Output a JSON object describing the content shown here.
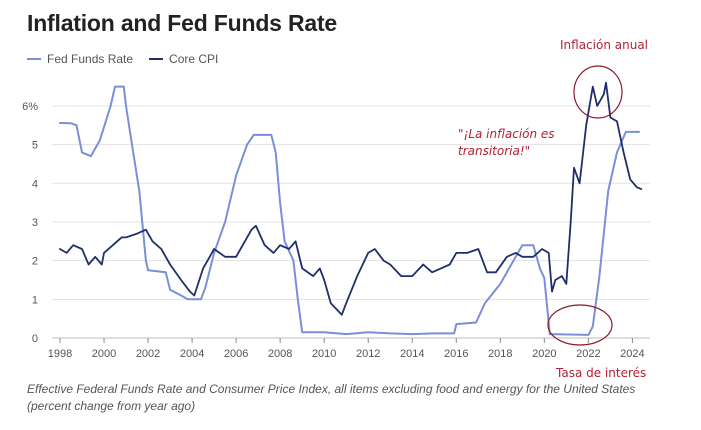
{
  "title": "Inflation and Fed Funds Rate",
  "caption": "Effective Federal Funds Rate and Consumer Price Index, all items excluding food and energy for the United States (percent change from year ago)",
  "annotations": {
    "inflation_label": "Inflación anual",
    "rate_label": "Tasa de interés",
    "quote": "\"¡La inflación es transitoria!\""
  },
  "colors": {
    "fed_funds": "#7b8fd8",
    "core_cpi": "#1f2f6b",
    "annotation": "#b22234",
    "grid": "#e3e3e3"
  },
  "chart_data": {
    "type": "line",
    "title": "Inflation and Fed Funds Rate",
    "xlabel": "",
    "ylabel": "",
    "xlim": [
      1998,
      2024.8
    ],
    "ylim": [
      0,
      6.8
    ],
    "x_ticks": [
      "1998",
      "2000",
      "2002",
      "2004",
      "2006",
      "2008",
      "2010",
      "2012",
      "2014",
      "2016",
      "2018",
      "2020",
      "2022",
      "2024"
    ],
    "y_ticks": [
      "0",
      "1",
      "2",
      "3",
      "4",
      "5",
      "6%"
    ],
    "legend_position": "top-left",
    "grid": "horizontal",
    "series": [
      {
        "name": "Fed Funds Rate",
        "color": "#7b8fd8",
        "points": [
          [
            1998.0,
            5.56
          ],
          [
            1998.5,
            5.55
          ],
          [
            1998.75,
            5.5
          ],
          [
            1999.0,
            4.8
          ],
          [
            1999.4,
            4.7
          ],
          [
            1999.8,
            5.1
          ],
          [
            2000.0,
            5.45
          ],
          [
            2000.3,
            6.0
          ],
          [
            2000.5,
            6.5
          ],
          [
            2000.9,
            6.5
          ],
          [
            2001.0,
            6.0
          ],
          [
            2001.3,
            4.9
          ],
          [
            2001.6,
            3.8
          ],
          [
            2001.9,
            2.0
          ],
          [
            2002.0,
            1.75
          ],
          [
            2002.8,
            1.7
          ],
          [
            2003.0,
            1.25
          ],
          [
            2003.5,
            1.1
          ],
          [
            2003.8,
            1.0
          ],
          [
            2004.4,
            1.0
          ],
          [
            2004.6,
            1.3
          ],
          [
            2005.0,
            2.2
          ],
          [
            2005.5,
            3.0
          ],
          [
            2006.0,
            4.2
          ],
          [
            2006.5,
            5.0
          ],
          [
            2006.8,
            5.25
          ],
          [
            2007.6,
            5.25
          ],
          [
            2007.8,
            4.8
          ],
          [
            2008.0,
            3.5
          ],
          [
            2008.2,
            2.5
          ],
          [
            2008.6,
            2.0
          ],
          [
            2008.8,
            1.0
          ],
          [
            2009.0,
            0.15
          ],
          [
            2010.0,
            0.15
          ],
          [
            2011.0,
            0.1
          ],
          [
            2012.0,
            0.15
          ],
          [
            2013.0,
            0.12
          ],
          [
            2014.0,
            0.1
          ],
          [
            2015.0,
            0.12
          ],
          [
            2015.9,
            0.12
          ],
          [
            2016.0,
            0.36
          ],
          [
            2016.9,
            0.4
          ],
          [
            2017.3,
            0.9
          ],
          [
            2018.0,
            1.4
          ],
          [
            2018.5,
            1.9
          ],
          [
            2019.0,
            2.4
          ],
          [
            2019.5,
            2.4
          ],
          [
            2019.8,
            1.8
          ],
          [
            2020.0,
            1.55
          ],
          [
            2020.25,
            0.1
          ],
          [
            2022.0,
            0.08
          ],
          [
            2022.2,
            0.3
          ],
          [
            2022.5,
            1.6
          ],
          [
            2022.9,
            3.8
          ],
          [
            2023.3,
            4.8
          ],
          [
            2023.7,
            5.33
          ],
          [
            2024.3,
            5.33
          ]
        ]
      },
      {
        "name": "Core CPI",
        "color": "#1f2f6b",
        "points": [
          [
            1998.0,
            2.3
          ],
          [
            1998.3,
            2.2
          ],
          [
            1998.6,
            2.4
          ],
          [
            1999.0,
            2.3
          ],
          [
            1999.3,
            1.9
          ],
          [
            1999.6,
            2.1
          ],
          [
            1999.9,
            1.9
          ],
          [
            2000.0,
            2.2
          ],
          [
            2000.4,
            2.4
          ],
          [
            2000.8,
            2.6
          ],
          [
            2001.0,
            2.6
          ],
          [
            2001.5,
            2.7
          ],
          [
            2001.9,
            2.8
          ],
          [
            2002.2,
            2.5
          ],
          [
            2002.6,
            2.3
          ],
          [
            2003.0,
            1.9
          ],
          [
            2003.5,
            1.5
          ],
          [
            2003.9,
            1.2
          ],
          [
            2004.1,
            1.1
          ],
          [
            2004.5,
            1.8
          ],
          [
            2004.8,
            2.1
          ],
          [
            2005.0,
            2.3
          ],
          [
            2005.5,
            2.1
          ],
          [
            2006.0,
            2.1
          ],
          [
            2006.3,
            2.4
          ],
          [
            2006.7,
            2.8
          ],
          [
            2006.9,
            2.9
          ],
          [
            2007.3,
            2.4
          ],
          [
            2007.7,
            2.2
          ],
          [
            2008.0,
            2.4
          ],
          [
            2008.4,
            2.3
          ],
          [
            2008.7,
            2.5
          ],
          [
            2009.0,
            1.8
          ],
          [
            2009.5,
            1.6
          ],
          [
            2009.8,
            1.8
          ],
          [
            2010.0,
            1.5
          ],
          [
            2010.3,
            0.9
          ],
          [
            2010.8,
            0.6
          ],
          [
            2011.0,
            0.9
          ],
          [
            2011.5,
            1.6
          ],
          [
            2012.0,
            2.2
          ],
          [
            2012.3,
            2.3
          ],
          [
            2012.7,
            2.0
          ],
          [
            2013.0,
            1.9
          ],
          [
            2013.5,
            1.6
          ],
          [
            2014.0,
            1.6
          ],
          [
            2014.5,
            1.9
          ],
          [
            2014.9,
            1.7
          ],
          [
            2015.3,
            1.8
          ],
          [
            2015.7,
            1.9
          ],
          [
            2016.0,
            2.2
          ],
          [
            2016.5,
            2.2
          ],
          [
            2017.0,
            2.3
          ],
          [
            2017.4,
            1.7
          ],
          [
            2017.8,
            1.7
          ],
          [
            2018.3,
            2.1
          ],
          [
            2018.7,
            2.2
          ],
          [
            2019.0,
            2.1
          ],
          [
            2019.5,
            2.1
          ],
          [
            2019.9,
            2.3
          ],
          [
            2020.2,
            2.2
          ],
          [
            2020.35,
            1.2
          ],
          [
            2020.5,
            1.5
          ],
          [
            2020.8,
            1.6
          ],
          [
            2021.0,
            1.4
          ],
          [
            2021.2,
            3.0
          ],
          [
            2021.35,
            4.4
          ],
          [
            2021.6,
            4.0
          ],
          [
            2021.9,
            5.5
          ],
          [
            2022.2,
            6.5
          ],
          [
            2022.4,
            6.0
          ],
          [
            2022.7,
            6.3
          ],
          [
            2022.8,
            6.6
          ],
          [
            2023.0,
            5.7
          ],
          [
            2023.3,
            5.6
          ],
          [
            2023.6,
            4.8
          ],
          [
            2023.9,
            4.1
          ],
          [
            2024.2,
            3.9
          ],
          [
            2024.4,
            3.85
          ]
        ]
      }
    ]
  }
}
